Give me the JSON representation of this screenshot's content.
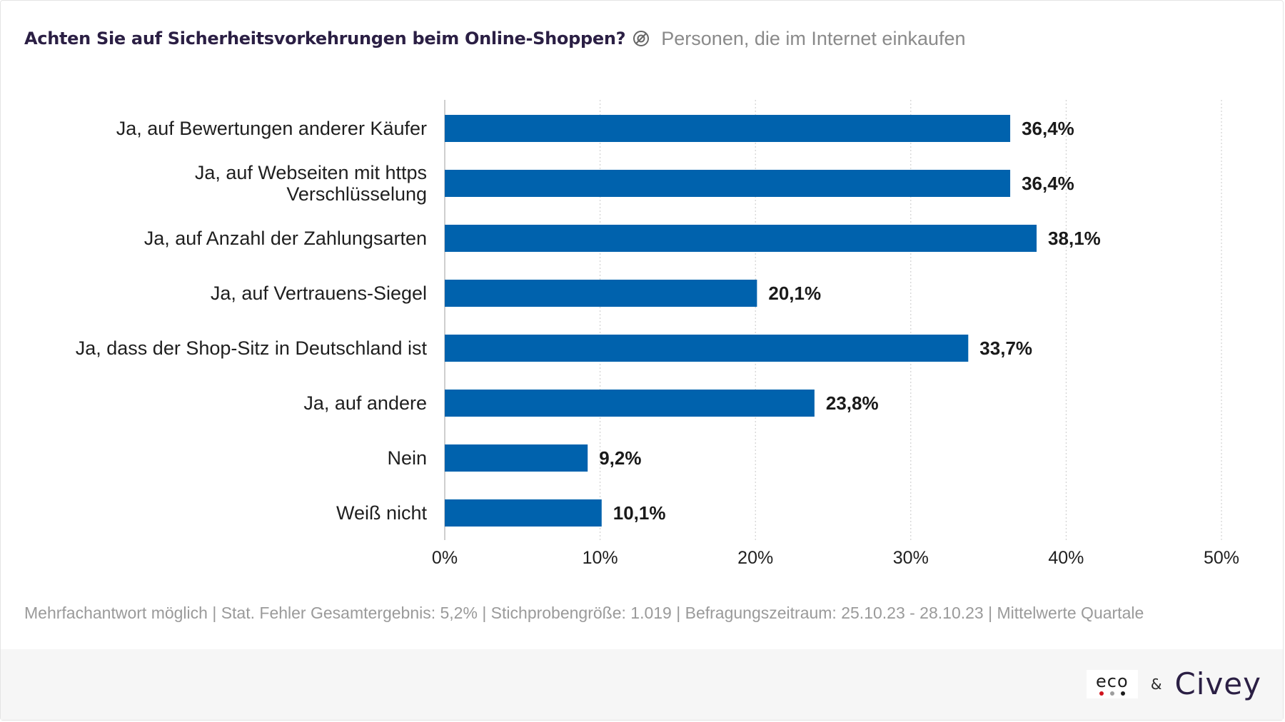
{
  "header": {
    "title": "Achten Sie auf Sicherheitsvorkehrungen beim Online-Shoppen?",
    "population_icon": "population-filter-icon",
    "subtitle": "Personen, die im Internet einkaufen"
  },
  "chart_data": {
    "type": "bar",
    "orientation": "horizontal",
    "categories": [
      [
        "Ja, auf Bewertungen anderer Käufer"
      ],
      [
        "Ja, auf Webseiten mit https",
        "Verschlüsselung"
      ],
      [
        "Ja, auf Anzahl der Zahlungsarten"
      ],
      [
        "Ja, auf Vertrauens-Siegel"
      ],
      [
        "Ja, dass der Shop-Sitz in Deutschland ist"
      ],
      [
        "Ja, auf andere"
      ],
      [
        "Nein"
      ],
      [
        "Weiß nicht"
      ]
    ],
    "values": [
      36.4,
      36.4,
      38.1,
      20.1,
      33.7,
      23.8,
      9.2,
      10.1
    ],
    "value_labels": [
      "36,4%",
      "36,4%",
      "38,1%",
      "20,1%",
      "33,7%",
      "23,8%",
      "9,2%",
      "10,1%"
    ],
    "xlim": [
      0,
      50
    ],
    "xticks": [
      0,
      10,
      20,
      30,
      40,
      50
    ],
    "xtick_labels": [
      "0%",
      "10%",
      "20%",
      "30%",
      "40%",
      "50%"
    ],
    "grid": "vertical dotted",
    "bar_color": "#0062ad"
  },
  "footnote": "Mehrfachantwort möglich | Stat. Fehler Gesamtergebnis: 5,2% | Stichprobengröße: 1.019 | Befragungszeitraum: 25.10.23 - 28.10.23 | Mittelwerte Quartale",
  "footer": {
    "eco_logo_text": "eco",
    "eco_dot_colors": [
      "#d0141e",
      "#9e9e9e",
      "#1d1d1d"
    ],
    "ampersand": "&",
    "civey_logo_text": "Civey"
  }
}
